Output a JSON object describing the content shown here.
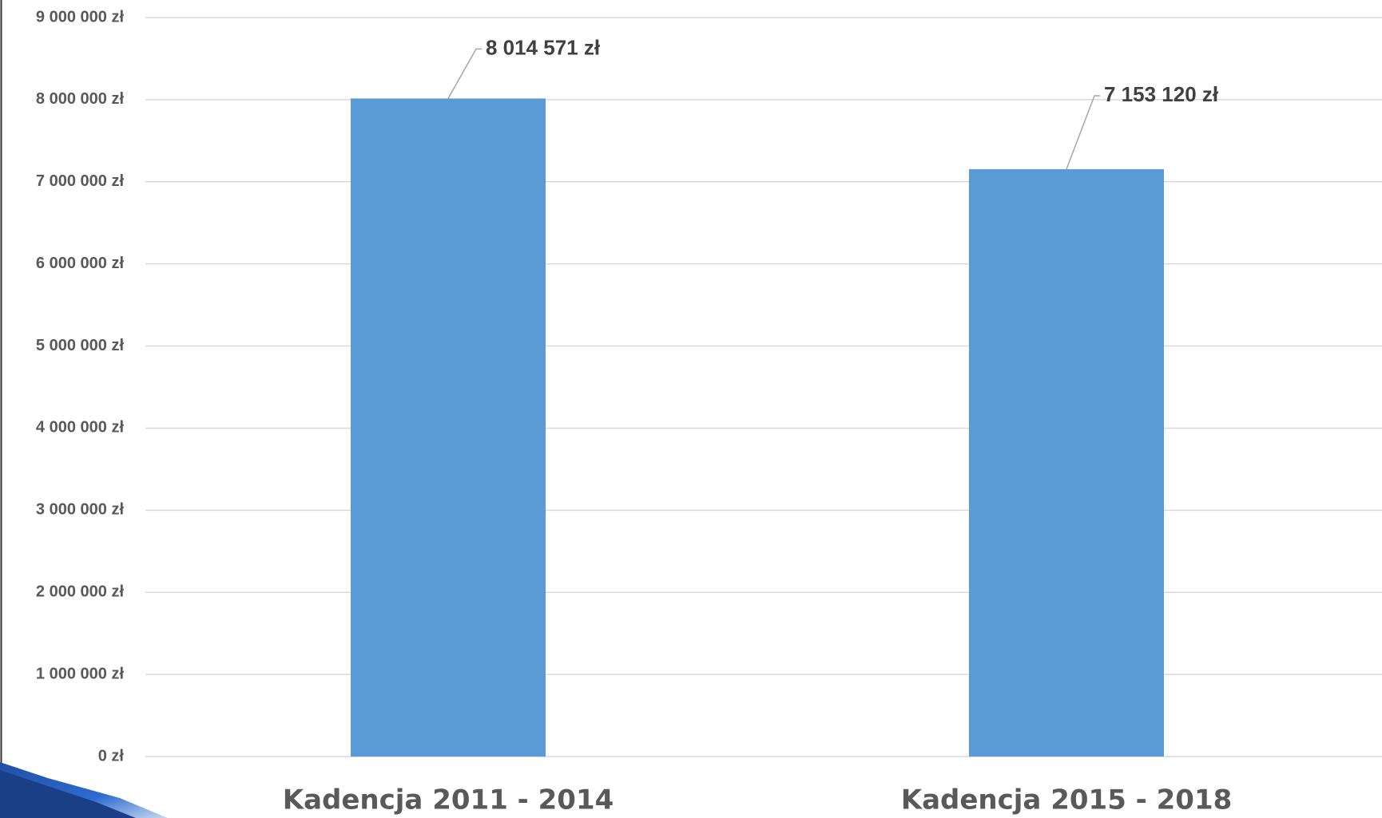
{
  "chart_data": {
    "type": "bar",
    "categories": [
      "Kadencja 2011 - 2014",
      "Kadencja 2015 - 2018"
    ],
    "values": [
      8014571,
      7153120
    ],
    "value_labels": [
      "8 014 571 zł",
      "7 153 120 zł"
    ],
    "color": "#5b9bd5",
    "ylim": [
      0,
      9000000
    ],
    "yticks": [
      {
        "value": 0,
        "label": "0 zł"
      },
      {
        "value": 1000000,
        "label": "1 000 000 zł"
      },
      {
        "value": 2000000,
        "label": "2 000 000 zł"
      },
      {
        "value": 3000000,
        "label": "3 000 000 zł"
      },
      {
        "value": 4000000,
        "label": "4 000 000 zł"
      },
      {
        "value": 5000000,
        "label": "5 000 000 zł"
      },
      {
        "value": 6000000,
        "label": "6 000 000 zł"
      },
      {
        "value": 7000000,
        "label": "7 000 000 zł"
      },
      {
        "value": 8000000,
        "label": "8 000 000 zł"
      },
      {
        "value": 9000000,
        "label": "9 000 000 zł"
      }
    ],
    "grid": true
  }
}
